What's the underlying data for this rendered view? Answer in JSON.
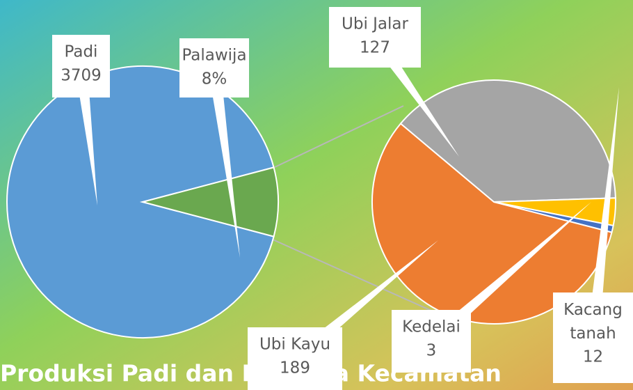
{
  "chart_data": [
    {
      "type": "pie",
      "title": "Produksi Padi dan Palawija Kecamatan",
      "categories": [
        "Padi",
        "Palawija"
      ],
      "values": [
        3709,
        331
      ],
      "value_labels": [
        "3709",
        "8%"
      ],
      "colors": [
        "#5b9bd5",
        "#6aa84f"
      ]
    },
    {
      "type": "pie",
      "categories": [
        "Ubi Jalar",
        "Kacang tanah",
        "Kedelai",
        "Ubi Kayu"
      ],
      "values": [
        127,
        12,
        3,
        189
      ],
      "colors": [
        "#a5a5a5",
        "#ffc000",
        "#4472c4",
        "#ed7d31"
      ]
    }
  ]
}
